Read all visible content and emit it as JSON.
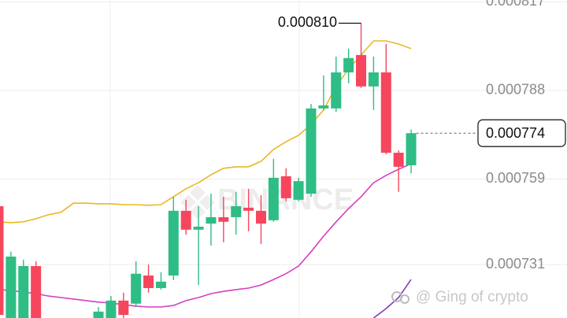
{
  "chart_data": {
    "type": "candlestick",
    "categories": [
      null,
      null,
      null,
      null,
      null,
      null,
      null,
      null,
      null,
      null,
      null,
      null,
      null,
      null,
      null,
      null,
      null,
      null,
      null,
      null,
      null,
      null,
      null,
      null,
      null,
      null,
      null,
      null,
      null,
      null,
      null,
      null,
      null,
      null
    ],
    "open": [
      0.0007501,
      0.0007135,
      0.0007135,
      0.0007305,
      null,
      null,
      null,
      null,
      0.0007135,
      0.0007135,
      0.0007192,
      0.0007182,
      0.0007274,
      0.0007233,
      0.0007274,
      0.0007486,
      0.0007424,
      0.0007444,
      0.0007465,
      0.0007465,
      0.0007496,
      0.0007486,
      0.0007455,
      0.0007599,
      0.0007522,
      0.0007542,
      0.0007821,
      0.0007821,
      0.0007939,
      0.0007996,
      0.0007893,
      0.0007939,
      0.0007676,
      0.0007635
    ],
    "high": [
      0.0007519,
      0.0007352,
      0.0007326,
      0.0007321,
      null,
      null,
      null,
      null,
      0.0007171,
      0.0007207,
      0.0007218,
      0.0007321,
      0.000731,
      0.0007285,
      0.0007532,
      0.0007522,
      0.0007501,
      0.0007542,
      0.0007532,
      0.0007548,
      0.0007558,
      0.0007537,
      0.0007656,
      0.0007625,
      0.0007594,
      0.0007836,
      0.0007929,
      0.0007991,
      0.0008017,
      0.00081,
      0.0007991,
      0.0008032,
      0.0007684,
      0.0007752
    ],
    "low": [
      0.0007135,
      0.0007135,
      0.0007135,
      0.0007135,
      null,
      null,
      null,
      null,
      0.0007135,
      0.0007135,
      0.0007135,
      0.0007171,
      0.0007218,
      0.0007228,
      0.0007259,
      0.0007408,
      0.0007243,
      0.0007372,
      0.0007383,
      0.0007408,
      0.0007419,
      0.0007377,
      0.000745,
      0.0007517,
      0.0007517,
      0.0007532,
      0.0007816,
      0.000781,
      0.0007903,
      0.0007888,
      0.0007816,
      0.0007671,
      0.0007548,
      0.0007609
    ],
    "close": [
      0.0007145,
      0.0007336,
      0.0007305,
      0.0007135,
      null,
      null,
      null,
      null,
      0.0007156,
      0.0007192,
      0.0007145,
      0.000728,
      0.0007233,
      0.0007254,
      0.0007486,
      0.0007424,
      0.0007434,
      0.0007465,
      0.000745,
      0.0007501,
      0.0007486,
      0.0007444,
      0.0007594,
      0.0007527,
      0.0007583,
      0.0007821,
      0.0007831,
      0.0007939,
      0.0007986,
      0.0007893,
      0.0007939,
      0.0007676,
      0.000763,
      0.000774
    ],
    "up_color": "#2ebd85",
    "down_color": "#f6465d",
    "overlays": [
      {
        "color": "#e8b923",
        "values": [
          0.000745,
          0.0007447,
          0.000745,
          0.000746,
          0.0007473,
          0.0007481,
          0.0007511,
          0.0007511,
          0.0007509,
          0.0007509,
          0.0007506,
          0.0007506,
          0.0007504,
          0.0007506,
          0.0007532,
          0.0007558,
          0.0007578,
          0.0007604,
          0.0007625,
          0.000763,
          0.000763,
          0.0007648,
          0.0007687,
          0.0007712,
          0.0007733,
          0.0007769,
          0.0007816,
          0.0007893,
          0.000795,
          0.0007996,
          0.0008042,
          0.0008042,
          0.0008032,
          0.0008017
        ]
      },
      {
        "color": "#d63fc0",
        "values": [
          0.0007228,
          0.0007225,
          0.000722,
          0.0007215,
          0.0007207,
          0.0007202,
          0.0007197,
          0.0007192,
          0.0007187,
          0.0007184,
          0.0007179,
          0.0007174,
          0.0007171,
          0.0007171,
          0.0007176,
          0.0007192,
          0.0007202,
          0.0007215,
          0.0007222,
          0.0007228,
          0.0007233,
          0.0007243,
          0.0007261,
          0.000728,
          0.0007305,
          0.0007352,
          0.0007403,
          0.000745,
          0.0007493,
          0.0007532,
          0.0007578,
          0.0007602,
          0.0007622,
          0.000764
        ]
      },
      {
        "color": "#7b3fb8",
        "values": [
          null,
          null,
          null,
          null,
          null,
          null,
          null,
          null,
          null,
          null,
          null,
          null,
          null,
          null,
          null,
          null,
          null,
          null,
          null,
          null,
          null,
          null,
          null,
          null,
          null,
          null,
          null,
          null,
          null,
          null,
          0.0007135,
          0.0007166,
          0.0007202,
          0.0007261
        ]
      }
    ],
    "ylim": [
      0.0007135,
      0.0008176
    ],
    "yticks": [
      0.000817,
      0.000788,
      0.000759,
      0.000731
    ],
    "grid": true,
    "high_annotation": {
      "value": 0.00081,
      "label": "0.000810"
    },
    "last_price": 0.000774,
    "watermark": "BINANCE",
    "credit": "@ Ging of crypto"
  }
}
